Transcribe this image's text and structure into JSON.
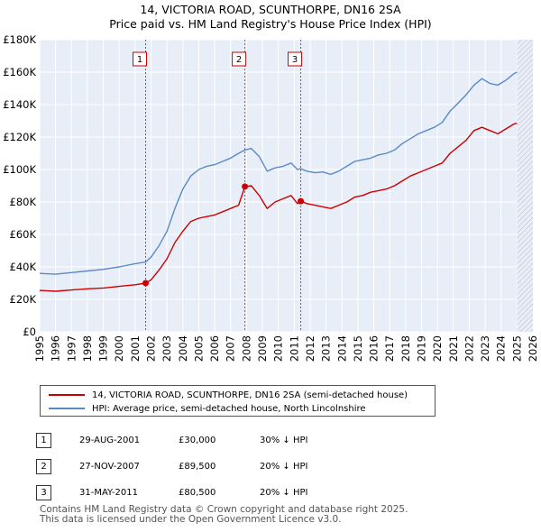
{
  "header": {
    "title_line1": "14, VICTORIA ROAD, SCUNTHORPE, DN16 2SA",
    "title_line2": "Price paid vs. HM Land Registry's House Price Index (HPI)"
  },
  "chart_data": {
    "type": "line",
    "xlim": [
      1995,
      2026
    ],
    "ylim": [
      0,
      180000
    ],
    "x_ticks": [
      1995,
      1996,
      1997,
      1998,
      1999,
      2000,
      2001,
      2002,
      2003,
      2004,
      2005,
      2006,
      2007,
      2008,
      2009,
      2010,
      2011,
      2012,
      2013,
      2014,
      2015,
      2016,
      2017,
      2018,
      2019,
      2020,
      2021,
      2022,
      2023,
      2024,
      2025,
      2026
    ],
    "y_ticks": [
      0,
      20000,
      40000,
      60000,
      80000,
      100000,
      120000,
      140000,
      160000,
      180000
    ],
    "y_tick_labels": [
      "£0",
      "£20K",
      "£40K",
      "£60K",
      "£80K",
      "£100K",
      "£120K",
      "£140K",
      "£160K",
      "£180K"
    ],
    "shaded_region_after": 2025.0,
    "series": [
      {
        "name": "14, VICTORIA ROAD, SCUNTHORPE, DN16 2SA (semi-detached house)",
        "color": "#cc0000",
        "points": [
          [
            1995.0,
            25500
          ],
          [
            1996.0,
            25000
          ],
          [
            1997.0,
            25800
          ],
          [
            1998.0,
            26500
          ],
          [
            1999.0,
            27000
          ],
          [
            2000.0,
            28000
          ],
          [
            2001.0,
            29000
          ],
          [
            2001.66,
            30000
          ],
          [
            2002.0,
            32000
          ],
          [
            2002.5,
            38000
          ],
          [
            2003.0,
            45000
          ],
          [
            2003.5,
            55000
          ],
          [
            2004.0,
            62000
          ],
          [
            2004.5,
            68000
          ],
          [
            2005.0,
            70000
          ],
          [
            2005.5,
            71000
          ],
          [
            2006.0,
            72000
          ],
          [
            2006.5,
            74000
          ],
          [
            2007.0,
            76000
          ],
          [
            2007.5,
            78000
          ],
          [
            2007.9,
            89500
          ],
          [
            2008.3,
            90000
          ],
          [
            2008.8,
            84000
          ],
          [
            2009.3,
            76000
          ],
          [
            2009.8,
            80000
          ],
          [
            2010.3,
            82000
          ],
          [
            2010.8,
            84000
          ],
          [
            2011.2,
            79000
          ],
          [
            2011.41,
            80500
          ],
          [
            2011.8,
            79000
          ],
          [
            2012.3,
            78000
          ],
          [
            2012.8,
            77000
          ],
          [
            2013.3,
            76000
          ],
          [
            2013.8,
            78000
          ],
          [
            2014.3,
            80000
          ],
          [
            2014.8,
            83000
          ],
          [
            2015.3,
            84000
          ],
          [
            2015.8,
            86000
          ],
          [
            2016.3,
            87000
          ],
          [
            2016.8,
            88000
          ],
          [
            2017.3,
            90000
          ],
          [
            2017.8,
            93000
          ],
          [
            2018.3,
            96000
          ],
          [
            2018.8,
            98000
          ],
          [
            2019.3,
            100000
          ],
          [
            2019.8,
            102000
          ],
          [
            2020.3,
            104000
          ],
          [
            2020.8,
            110000
          ],
          [
            2021.3,
            114000
          ],
          [
            2021.8,
            118000
          ],
          [
            2022.3,
            124000
          ],
          [
            2022.8,
            126000
          ],
          [
            2023.3,
            124000
          ],
          [
            2023.8,
            122000
          ],
          [
            2024.3,
            125000
          ],
          [
            2024.8,
            128000
          ],
          [
            2025.0,
            128500
          ]
        ]
      },
      {
        "name": "HPI: Average price, semi-detached house, North Lincolnshire",
        "color": "#5a8ac6",
        "points": [
          [
            1995.0,
            36000
          ],
          [
            1996.0,
            35500
          ],
          [
            1997.0,
            36500
          ],
          [
            1998.0,
            37500
          ],
          [
            1999.0,
            38500
          ],
          [
            2000.0,
            40000
          ],
          [
            2001.0,
            42000
          ],
          [
            2001.66,
            43000
          ],
          [
            2002.0,
            46000
          ],
          [
            2002.5,
            53000
          ],
          [
            2003.0,
            62000
          ],
          [
            2003.5,
            76000
          ],
          [
            2004.0,
            88000
          ],
          [
            2004.5,
            96000
          ],
          [
            2005.0,
            100000
          ],
          [
            2005.5,
            102000
          ],
          [
            2006.0,
            103000
          ],
          [
            2006.5,
            105000
          ],
          [
            2007.0,
            107000
          ],
          [
            2007.5,
            110000
          ],
          [
            2007.9,
            112000
          ],
          [
            2008.3,
            113000
          ],
          [
            2008.8,
            108000
          ],
          [
            2009.3,
            99000
          ],
          [
            2009.8,
            101000
          ],
          [
            2010.3,
            102000
          ],
          [
            2010.8,
            104000
          ],
          [
            2011.2,
            100000
          ],
          [
            2011.41,
            100500
          ],
          [
            2011.8,
            99000
          ],
          [
            2012.3,
            98000
          ],
          [
            2012.8,
            98500
          ],
          [
            2013.3,
            97000
          ],
          [
            2013.8,
            99000
          ],
          [
            2014.3,
            102000
          ],
          [
            2014.8,
            105000
          ],
          [
            2015.3,
            106000
          ],
          [
            2015.8,
            107000
          ],
          [
            2016.3,
            109000
          ],
          [
            2016.8,
            110000
          ],
          [
            2017.3,
            112000
          ],
          [
            2017.8,
            116000
          ],
          [
            2018.3,
            119000
          ],
          [
            2018.8,
            122000
          ],
          [
            2019.3,
            124000
          ],
          [
            2019.8,
            126000
          ],
          [
            2020.3,
            129000
          ],
          [
            2020.8,
            136000
          ],
          [
            2021.3,
            141000
          ],
          [
            2021.8,
            146000
          ],
          [
            2022.3,
            152000
          ],
          [
            2022.8,
            156000
          ],
          [
            2023.3,
            153000
          ],
          [
            2023.8,
            152000
          ],
          [
            2024.3,
            155000
          ],
          [
            2024.8,
            159000
          ],
          [
            2025.0,
            160000
          ]
        ]
      }
    ],
    "sales": [
      {
        "id": "1",
        "x": 2001.66,
        "price": 30000
      },
      {
        "id": "2",
        "x": 2007.9,
        "price": 89500
      },
      {
        "id": "3",
        "x": 2011.41,
        "price": 80500
      }
    ]
  },
  "legend": {
    "property_label": "14, VICTORIA ROAD, SCUNTHORPE, DN16 2SA (semi-detached house)",
    "hpi_label": "HPI: Average price, semi-detached house, North Lincolnshire"
  },
  "transactions": [
    {
      "num": "1",
      "date": "29-AUG-2001",
      "price": "£30,000",
      "hpi": "30% ↓ HPI"
    },
    {
      "num": "2",
      "date": "27-NOV-2007",
      "price": "£89,500",
      "hpi": "20% ↓ HPI"
    },
    {
      "num": "3",
      "date": "31-MAY-2011",
      "price": "£80,500",
      "hpi": "20% ↓ HPI"
    }
  ],
  "footer": {
    "line1": "Contains HM Land Registry data © Crown copyright and database right 2025.",
    "line2": "This data is licensed under the Open Government Licence v3.0."
  }
}
